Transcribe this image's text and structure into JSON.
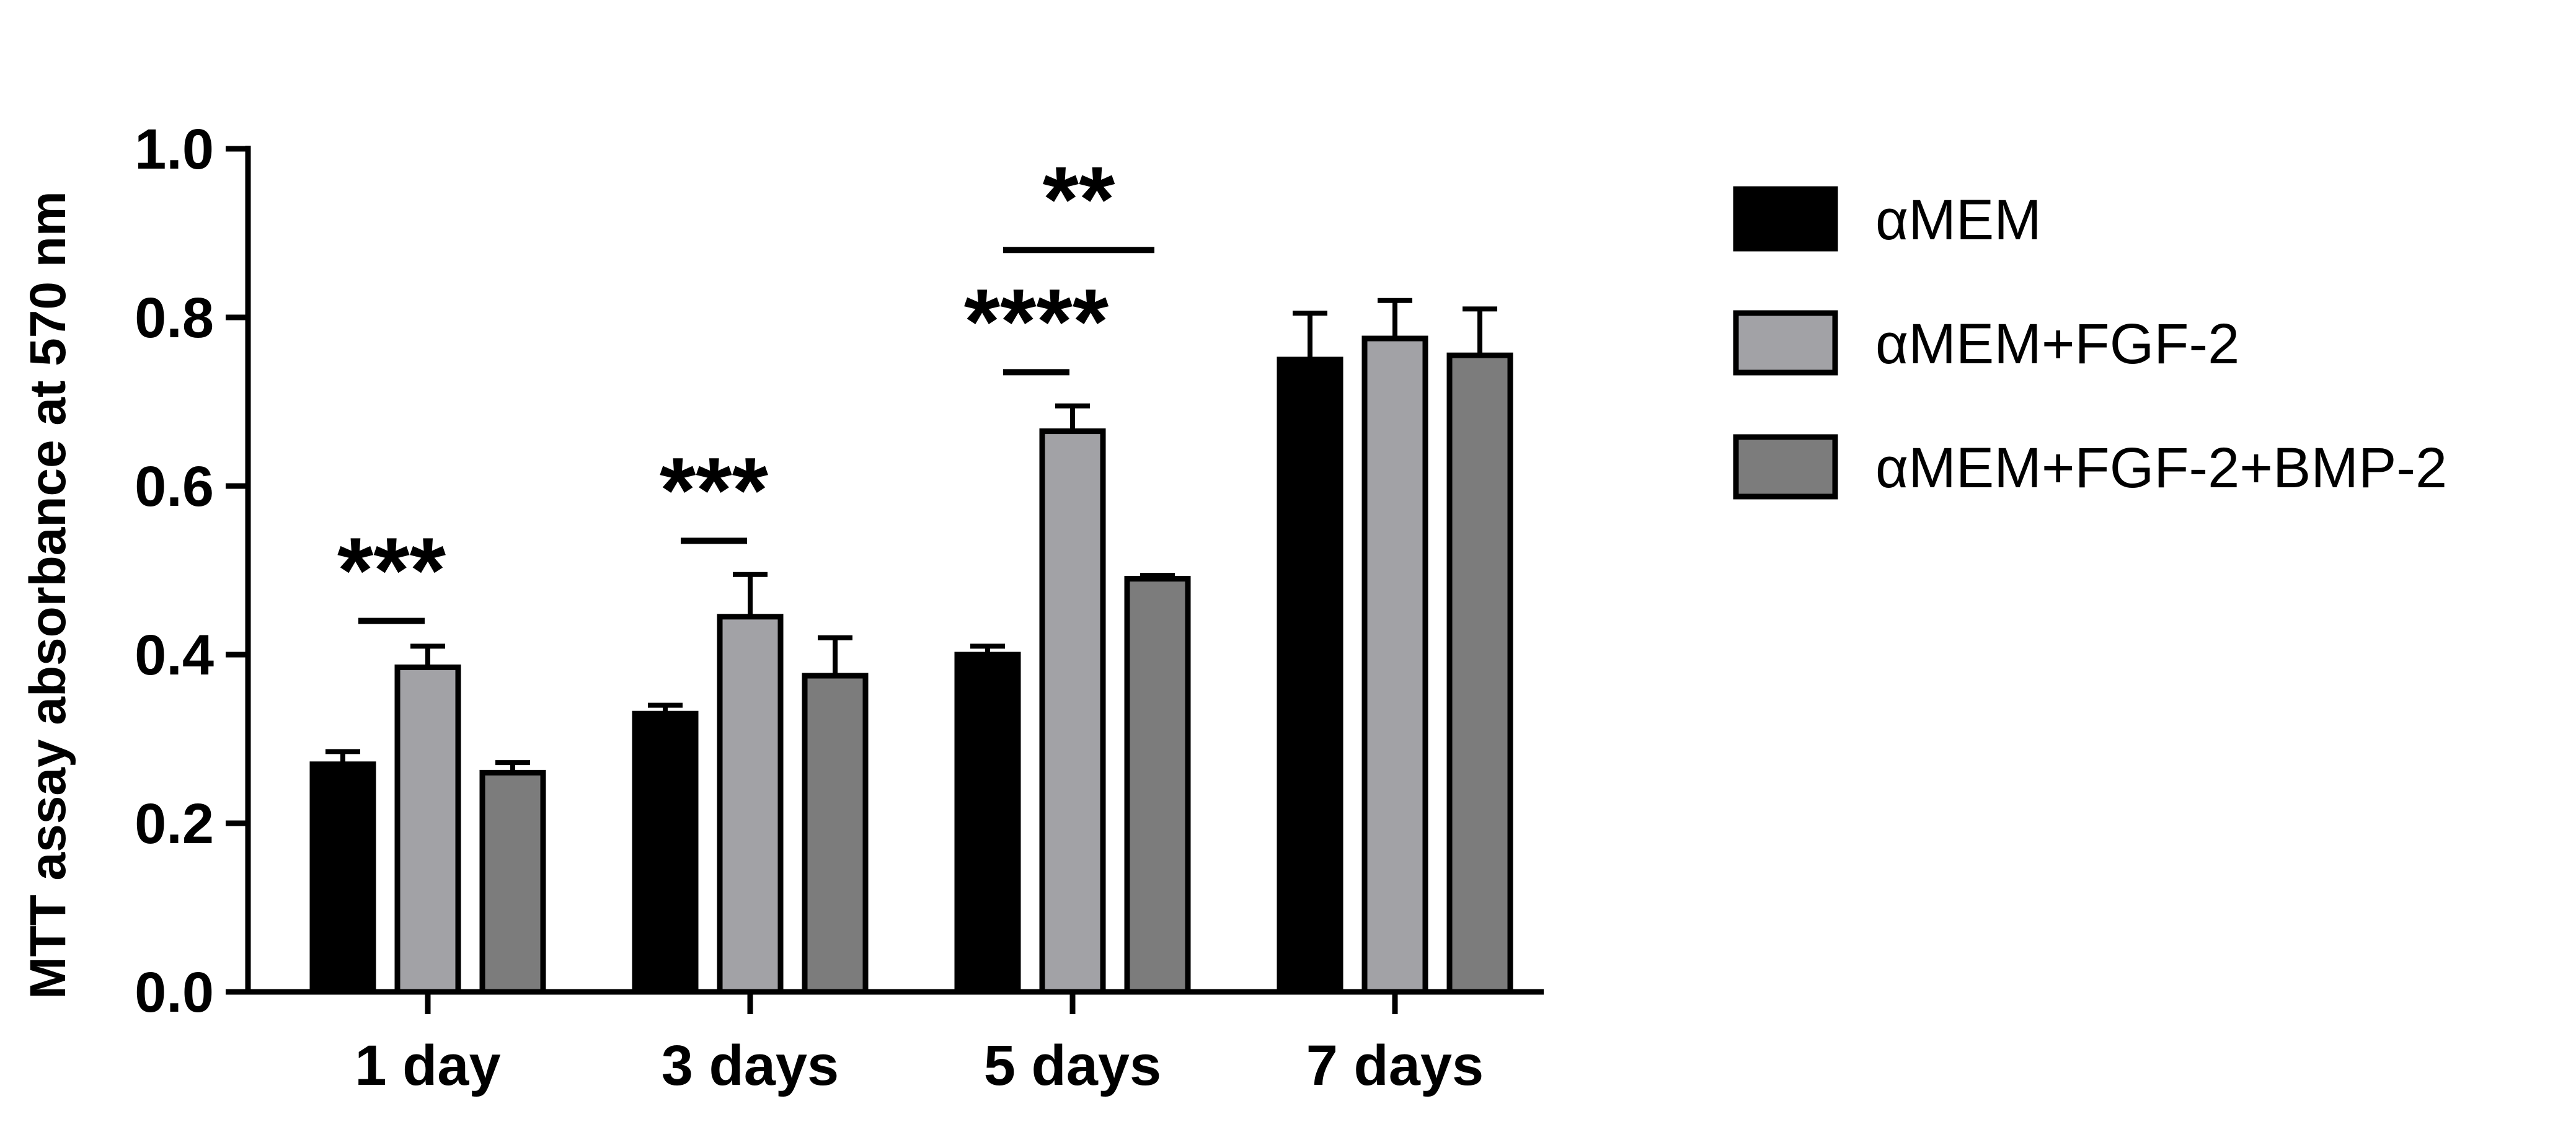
{
  "chart_data": {
    "type": "bar",
    "title": "",
    "xlabel": "",
    "ylabel": "MTT assay absorbance at 570 nm",
    "ylim": [
      0,
      1.0
    ],
    "yticks": [
      "0.0",
      "0.2",
      "0.4",
      "0.6",
      "0.8",
      "1.0"
    ],
    "ytick_values": [
      0,
      0.2,
      0.4,
      0.6,
      0.8,
      1.0
    ],
    "grid": false,
    "legend_position": "right",
    "categories": [
      "1 day",
      "3 days",
      "5 days",
      "7 days"
    ],
    "series": [
      {
        "name": "αMEM",
        "color": "#000000",
        "values": [
          0.27,
          0.33,
          0.4,
          0.75
        ],
        "errors": [
          0.015,
          0.01,
          0.01,
          0.055
        ]
      },
      {
        "name": "αMEM+FGF-2",
        "color": "#a2a2a6",
        "values": [
          0.385,
          0.445,
          0.665,
          0.775
        ],
        "errors": [
          0.025,
          0.05,
          0.03,
          0.045
        ]
      },
      {
        "name": "αMEM+FGF-2+BMP-2",
        "color": "#7c7c7c",
        "values": [
          0.26,
          0.375,
          0.49,
          0.755
        ],
        "errors": [
          0.012,
          0.045,
          0.004,
          0.055
        ]
      }
    ],
    "annotations": [
      {
        "label": "***",
        "category": 0,
        "from_series": 0,
        "to_series": 1,
        "y": 0.44
      },
      {
        "label": "***",
        "category": 1,
        "from_series": 0,
        "to_series": 1,
        "y": 0.535
      },
      {
        "label": "****",
        "category": 2,
        "from_series": 0,
        "to_series": 1,
        "y": 0.735
      },
      {
        "label": "**",
        "category": 2,
        "from_series": 0,
        "to_series": 2,
        "y": 0.88
      }
    ]
  }
}
